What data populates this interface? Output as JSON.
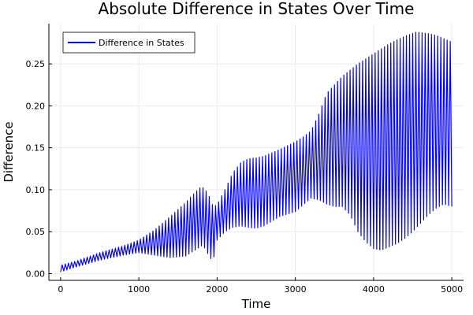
{
  "chart_data": {
    "type": "line",
    "title": "Absolute Difference in States Over Time",
    "xlabel": "Time",
    "ylabel": "Difference",
    "xlim": [
      -150,
      5150
    ],
    "ylim": [
      -0.008,
      0.298
    ],
    "xticks": [
      0,
      1000,
      2000,
      3000,
      4000,
      5000
    ],
    "xtick_labels": [
      "0",
      "1000",
      "2000",
      "3000",
      "4000",
      "5000"
    ],
    "yticks": [
      0.0,
      0.05,
      0.1,
      0.15,
      0.2,
      0.25
    ],
    "ytick_labels": [
      "0.00",
      "0.05",
      "0.10",
      "0.15",
      "0.20",
      "0.25"
    ],
    "grid": true,
    "legend_position": "top-left",
    "series": [
      {
        "name": "Difference in States",
        "color": "#0000ff",
        "oscillation_period": 40,
        "upper_envelope": {
          "x": [
            0,
            200,
            500,
            800,
            1000,
            1200,
            1400,
            1600,
            1700,
            1800,
            1850,
            1900,
            1950,
            2000,
            2100,
            2200,
            2300,
            2400,
            2500,
            2600,
            2800,
            3000,
            3100,
            3200,
            3300,
            3400,
            3600,
            3800,
            4000,
            4200,
            4400,
            4550,
            4700,
            4800,
            4900,
            4950,
            5000
          ],
          "y": [
            0.01,
            0.015,
            0.025,
            0.033,
            0.04,
            0.052,
            0.068,
            0.085,
            0.095,
            0.104,
            0.1,
            0.092,
            0.08,
            0.082,
            0.1,
            0.12,
            0.132,
            0.137,
            0.138,
            0.14,
            0.148,
            0.157,
            0.163,
            0.17,
            0.19,
            0.215,
            0.235,
            0.25,
            0.262,
            0.274,
            0.283,
            0.288,
            0.286,
            0.284,
            0.28,
            0.278,
            0.276
          ]
        },
        "lower_envelope": {
          "x": [
            0,
            200,
            500,
            800,
            1000,
            1200,
            1400,
            1600,
            1700,
            1800,
            1850,
            1900,
            1950,
            2000,
            2100,
            2200,
            2300,
            2400,
            2500,
            2600,
            2800,
            3000,
            3200,
            3300,
            3400,
            3500,
            3600,
            3700,
            3800,
            3900,
            4000,
            4100,
            4200,
            4300,
            4400,
            4500,
            4600,
            4700,
            4800,
            4900,
            5000
          ],
          "y": [
            0.002,
            0.008,
            0.016,
            0.022,
            0.025,
            0.022,
            0.019,
            0.021,
            0.027,
            0.033,
            0.03,
            0.02,
            0.015,
            0.04,
            0.05,
            0.055,
            0.057,
            0.055,
            0.054,
            0.057,
            0.068,
            0.074,
            0.09,
            0.088,
            0.083,
            0.08,
            0.08,
            0.07,
            0.05,
            0.038,
            0.03,
            0.028,
            0.032,
            0.036,
            0.042,
            0.05,
            0.06,
            0.07,
            0.078,
            0.083,
            0.08
          ]
        }
      }
    ]
  }
}
